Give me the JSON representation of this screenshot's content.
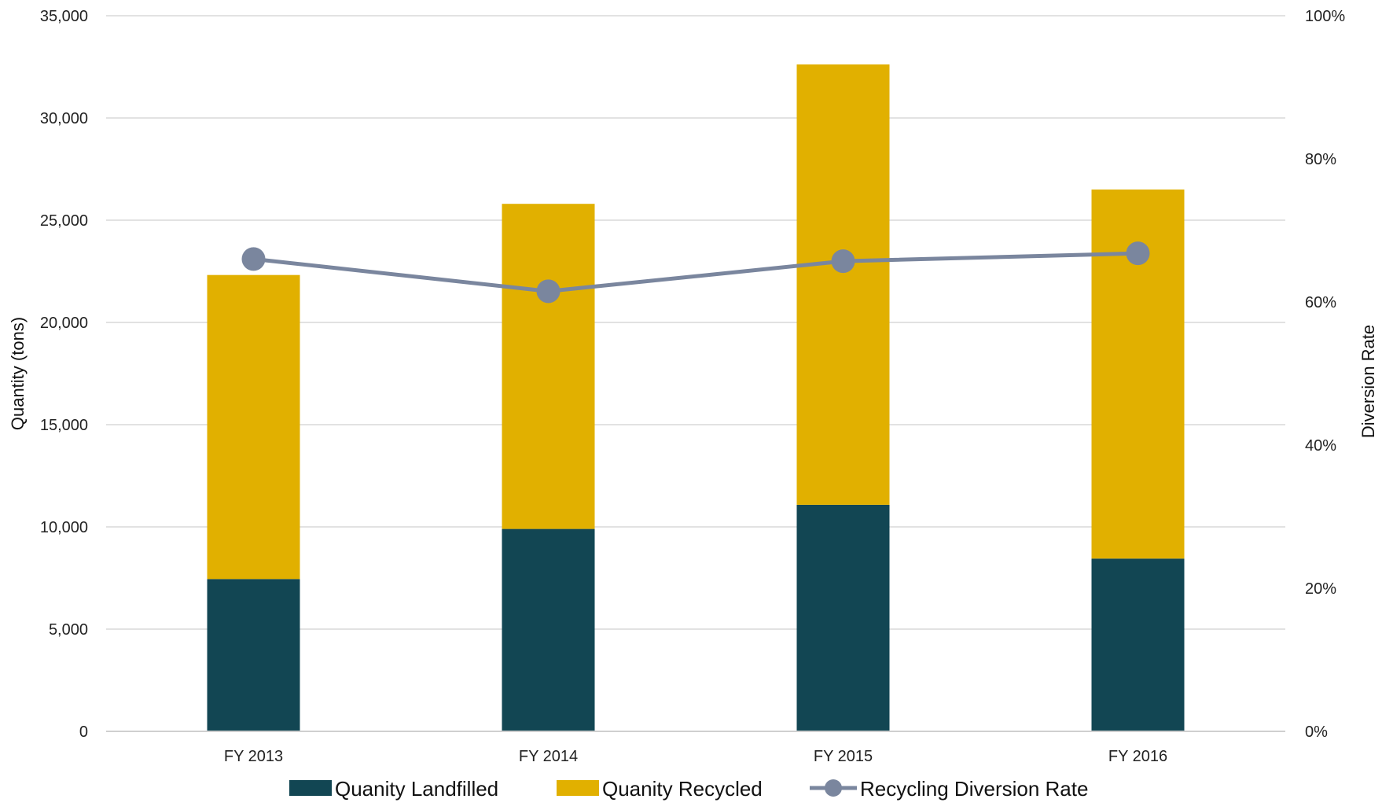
{
  "chart_data": {
    "type": "bar",
    "stacked": true,
    "categories": [
      "FY 2013",
      "FY 2014",
      "FY 2015",
      "FY 2016"
    ],
    "series": [
      {
        "name": "Quanity Landfilled",
        "type": "bar",
        "axis": "left",
        "color": "#124653",
        "values": [
          7450,
          9900,
          11080,
          8450
        ]
      },
      {
        "name": "Quanity Recycled",
        "type": "bar",
        "axis": "left",
        "color": "#e1b000",
        "values": [
          14870,
          15900,
          21540,
          18050
        ]
      },
      {
        "name": "Recycling Diversion Rate",
        "type": "line",
        "axis": "right",
        "color": "#7a869e",
        "values": [
          66,
          61.5,
          65.7,
          66.8
        ]
      }
    ],
    "yleft": {
      "label": "Quantity (tons)",
      "min": 0,
      "max": 35000,
      "ticks": [
        0,
        5000,
        10000,
        15000,
        20000,
        25000,
        30000,
        35000
      ],
      "tick_labels": [
        "0",
        "5,000",
        "10,000",
        "15,000",
        "20,000",
        "25,000",
        "30,000",
        "35,000"
      ]
    },
    "yright": {
      "label": "Diversion Rate",
      "min": 0,
      "max": 100,
      "ticks": [
        0,
        20,
        40,
        60,
        80,
        100
      ],
      "tick_labels": [
        "0%",
        "20%",
        "40%",
        "60%",
        "80%",
        "100%"
      ]
    },
    "grid": true,
    "legend": "bottom"
  }
}
